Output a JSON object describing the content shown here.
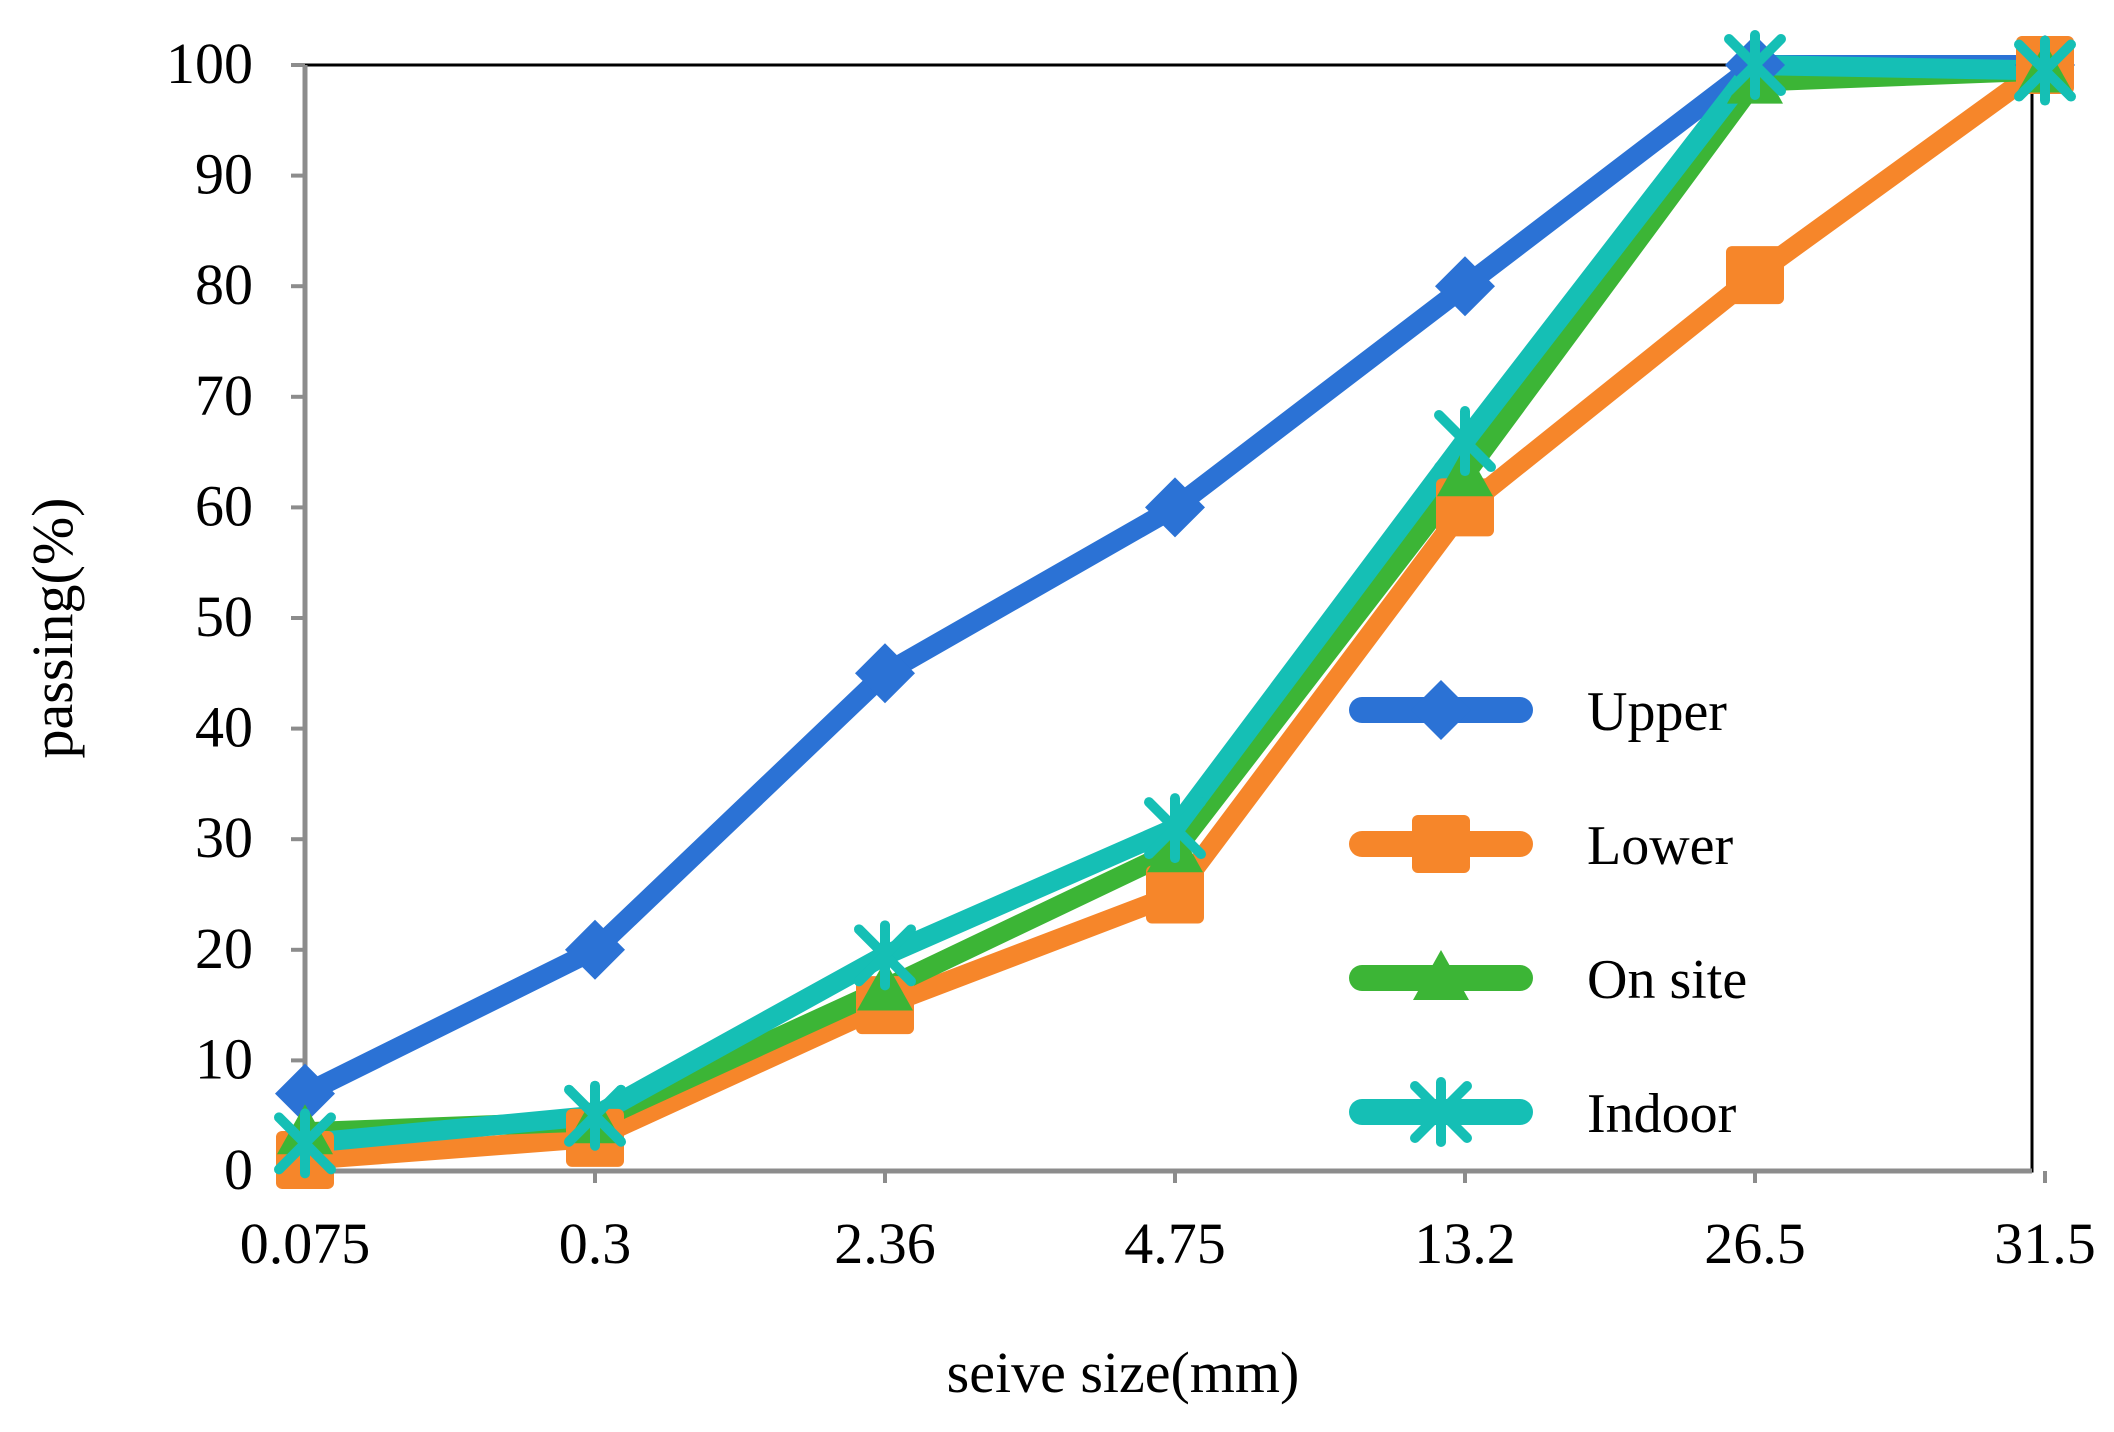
{
  "chart_data": {
    "type": "line",
    "title": "",
    "xlabel": "seive size(mm)",
    "ylabel": "passing(%)",
    "categories": [
      "0.075",
      "0.3",
      "2.36",
      "4.75",
      "13.2",
      "26.5",
      "31.5"
    ],
    "ylim": [
      0,
      100
    ],
    "yticks": [
      "0",
      "10",
      "20",
      "30",
      "40",
      "50",
      "60",
      "70",
      "80",
      "90",
      "100"
    ],
    "grid": false,
    "legend_position": "right",
    "series": [
      {
        "name": "Upper",
        "color": "#2B72D5",
        "marker": "diamond",
        "values": [
          7,
          20,
          45,
          60,
          80,
          100,
          100
        ]
      },
      {
        "name": "Lower",
        "color": "#F6862A",
        "marker": "square",
        "values": [
          1,
          3,
          15,
          25,
          60,
          81,
          100
        ]
      },
      {
        "name": "On site",
        "color": "#3CB536",
        "marker": "triangle",
        "values": [
          3.5,
          4.5,
          16.5,
          29,
          63,
          98.5,
          99.5
        ]
      },
      {
        "name": "Indoor",
        "color": "#15BFB5",
        "marker": "star",
        "values": [
          2.5,
          5,
          19.5,
          31,
          66,
          100,
          99.5
        ]
      }
    ]
  }
}
